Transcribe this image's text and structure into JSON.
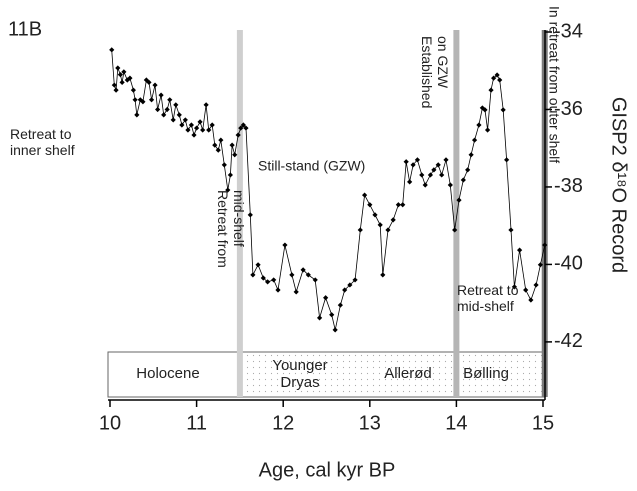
{
  "chart_data": {
    "type": "line",
    "panel_label": "11B",
    "x_label": "Age, cal kyr BP",
    "y_label": "GISP2 δ¹⁸O Record",
    "xlim": [
      10,
      15
    ],
    "xticks": [
      10,
      11,
      12,
      13,
      14,
      15
    ],
    "ylim": [
      -43.5,
      -34
    ],
    "yticks": [
      -34,
      -36,
      -38,
      -40,
      -42
    ],
    "color": "#000000",
    "x": [
      10.02,
      10.05,
      10.07,
      10.09,
      10.12,
      10.14,
      10.16,
      10.2,
      10.23,
      10.27,
      10.29,
      10.31,
      10.35,
      10.38,
      10.42,
      10.45,
      10.48,
      10.52,
      10.55,
      10.59,
      10.62,
      10.66,
      10.69,
      10.73,
      10.76,
      10.8,
      10.83,
      10.87,
      10.9,
      10.94,
      10.97,
      11.0,
      11.04,
      11.07,
      11.11,
      11.14,
      11.18,
      11.21,
      11.25,
      11.28,
      11.32,
      11.36,
      11.39,
      11.41,
      11.44,
      11.48,
      11.51,
      11.54,
      11.57,
      11.62,
      11.65,
      11.71,
      11.77,
      11.82,
      11.89,
      11.94,
      12.02,
      12.1,
      12.15,
      12.23,
      12.29,
      12.37,
      12.42,
      12.49,
      12.56,
      12.6,
      12.66,
      12.71,
      12.77,
      12.83,
      12.89,
      12.94,
      13.0,
      13.06,
      13.12,
      13.15,
      13.21,
      13.27,
      13.33,
      13.38,
      13.42,
      13.46,
      13.5,
      13.55,
      13.6,
      13.64,
      13.7,
      13.74,
      13.79,
      13.83,
      13.88,
      13.93,
      13.98,
      14.03,
      14.08,
      14.13,
      14.17,
      14.21,
      14.26,
      14.3,
      14.33,
      14.36,
      14.4,
      14.43,
      14.47,
      14.5,
      14.54,
      14.58,
      14.63,
      14.67,
      14.73,
      14.8,
      14.86,
      14.92,
      14.97,
      15.02
    ],
    "values": [
      -34.46,
      -35.37,
      -35.5,
      -34.93,
      -35.1,
      -35.3,
      -35.03,
      -35.24,
      -35.19,
      -35.5,
      -35.75,
      -36.14,
      -35.75,
      -35.8,
      -35.24,
      -35.3,
      -35.75,
      -35.37,
      -36.0,
      -35.63,
      -36.14,
      -36.0,
      -35.75,
      -36.27,
      -35.88,
      -36.14,
      -36.4,
      -36.27,
      -36.53,
      -36.4,
      -36.66,
      -36.48,
      -36.32,
      -36.53,
      -35.88,
      -36.53,
      -36.4,
      -36.92,
      -37.05,
      -36.79,
      -37.43,
      -38.08,
      -37.69,
      -36.92,
      -37.17,
      -36.66,
      -36.48,
      -36.4,
      -36.48,
      -38.72,
      -40.27,
      -40.01,
      -40.35,
      -40.45,
      -40.4,
      -40.66,
      -39.5,
      -40.27,
      -40.71,
      -40.14,
      -40.27,
      -40.4,
      -41.38,
      -40.86,
      -41.3,
      -41.69,
      -41.05,
      -40.66,
      -40.53,
      -40.4,
      -39.11,
      -38.21,
      -38.46,
      -38.72,
      -38.98,
      -40.27,
      -39.11,
      -38.85,
      -38.46,
      -38.46,
      -37.35,
      -37.87,
      -37.43,
      -37.3,
      -37.69,
      -37.95,
      -37.69,
      -37.56,
      -37.43,
      -37.69,
      -37.3,
      -37.95,
      -39.11,
      -38.34,
      -37.82,
      -37.56,
      -37.17,
      -36.79,
      -36.4,
      -35.96,
      -36.01,
      -36.53,
      -35.5,
      -35.19,
      -35.11,
      -35.24,
      -36.01,
      -37.3,
      -39.11,
      -40.58,
      -39.63,
      -40.66,
      -40.92,
      -40.53,
      -40.01,
      -39.5
    ],
    "boundaries": [
      {
        "x": 11.5,
        "color": "#cfcfcf"
      },
      {
        "x": 14.0,
        "color": "#b5b5b5"
      },
      {
        "x": 15.02,
        "color": "#7a7a7a"
      }
    ],
    "periods": [
      "Holocene",
      "Younger Dryas",
      "Allerød",
      "Bølling"
    ],
    "annotations": [
      "Retreat to inner shelf",
      "Still-stand (GZW)",
      "Retreat from mid-shelf",
      "Established on GZW",
      "In retreat from outer shelf",
      "Retreat to mid-shelf"
    ]
  }
}
